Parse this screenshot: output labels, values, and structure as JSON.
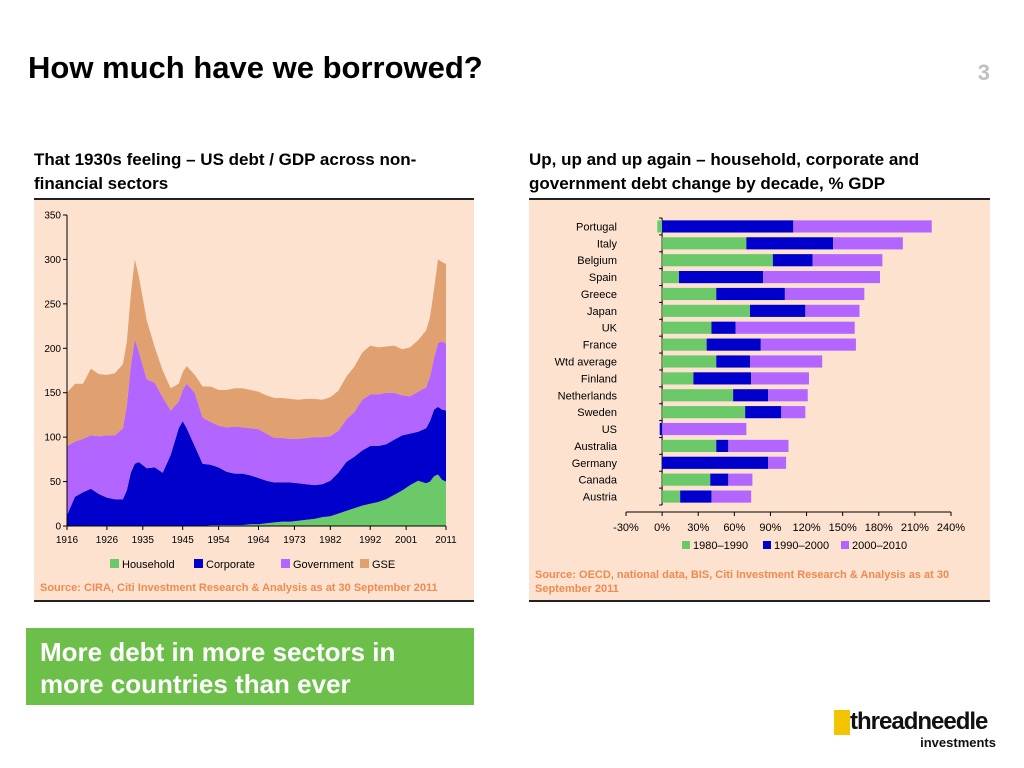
{
  "slide": {
    "title": "How much have we borrowed?",
    "page_number": "3",
    "callout": "More debt in more sectors in more countries than ever",
    "logo": {
      "name": "threadneedle",
      "tagline": "investments"
    }
  },
  "chart_data": [
    {
      "type": "area",
      "title": "That 1930s feeling – US debt / GDP across non-financial sectors",
      "xlabel": "",
      "ylabel": "",
      "stacked": true,
      "x": [
        1916,
        1918,
        1920,
        1922,
        1924,
        1926,
        1928,
        1930,
        1931,
        1932,
        1933,
        1934,
        1936,
        1938,
        1940,
        1942,
        1944,
        1945,
        1946,
        1948,
        1950,
        1952,
        1954,
        1956,
        1958,
        1960,
        1962,
        1964,
        1966,
        1968,
        1970,
        1972,
        1974,
        1976,
        1978,
        1980,
        1982,
        1984,
        1986,
        1988,
        1990,
        1992,
        1994,
        1996,
        1998,
        2000,
        2002,
        2004,
        2006,
        2007,
        2008,
        2009,
        2010,
        2011
      ],
      "xticks": [
        1916,
        1926,
        1935,
        1945,
        1954,
        1964,
        1973,
        1982,
        1992,
        2001,
        2011
      ],
      "xtick_labels": [
        "1916",
        "1926",
        "1935",
        "1945",
        "1954",
        "1964",
        "1973",
        "1982",
        "1992",
        "2001",
        "2011"
      ],
      "ylim": [
        0,
        350
      ],
      "yticks": [
        0,
        50,
        100,
        150,
        200,
        250,
        300,
        350
      ],
      "grid": false,
      "legend_position": "bottom",
      "series": [
        {
          "name": "Household",
          "color": "#6cc96a",
          "values": [
            0,
            0,
            0,
            0,
            0,
            0,
            0,
            0,
            0,
            0,
            0,
            0,
            0,
            0,
            0,
            0,
            0,
            0,
            0,
            0,
            0,
            1,
            1,
            1,
            1,
            1,
            2,
            2,
            3,
            4,
            5,
            5,
            6,
            7,
            8,
            10,
            11,
            14,
            17,
            20,
            23,
            25,
            27,
            30,
            35,
            40,
            46,
            51,
            48,
            50,
            56,
            58,
            52,
            50
          ]
        },
        {
          "name": "Corporate",
          "color": "#0000cc",
          "values": [
            12,
            33,
            38,
            42,
            36,
            32,
            30,
            30,
            40,
            60,
            70,
            72,
            65,
            66,
            60,
            80,
            110,
            118,
            110,
            90,
            70,
            68,
            65,
            60,
            58,
            58,
            55,
            52,
            48,
            45,
            44,
            44,
            42,
            40,
            38,
            37,
            40,
            46,
            55,
            58,
            62,
            65,
            63,
            62,
            62,
            62,
            58,
            55,
            62,
            68,
            75,
            76,
            79,
            80
          ]
        },
        {
          "name": "Government",
          "color": "#b366ff",
          "values": [
            78,
            62,
            60,
            60,
            65,
            70,
            72,
            80,
            95,
            120,
            140,
            124,
            100,
            95,
            85,
            50,
            30,
            35,
            50,
            60,
            52,
            48,
            47,
            50,
            53,
            52,
            53,
            55,
            53,
            50,
            50,
            49,
            50,
            52,
            54,
            53,
            50,
            47,
            48,
            50,
            57,
            58,
            58,
            58,
            53,
            45,
            42,
            45,
            46,
            50,
            58,
            72,
            77,
            75
          ]
        },
        {
          "name": "GSE",
          "color": "#e0a070",
          "values": [
            60,
            65,
            62,
            75,
            70,
            68,
            70,
            72,
            72,
            80,
            90,
            85,
            66,
            40,
            30,
            25,
            20,
            20,
            20,
            20,
            35,
            40,
            40,
            42,
            43,
            44,
            43,
            42,
            43,
            45,
            45,
            45,
            44,
            44,
            43,
            42,
            44,
            45,
            48,
            51,
            53,
            55,
            53,
            52,
            53,
            52,
            55,
            58,
            64,
            67,
            77,
            94,
            89,
            90
          ]
        }
      ],
      "source": "Source: CIRA, Citi Investment Research & Analysis as at 30 September 2011"
    },
    {
      "type": "bar",
      "orientation": "horizontal",
      "stacked": true,
      "title": "Up, up and up again – household, corporate and government debt change by decade, % GDP",
      "xlabel": "",
      "ylabel": "",
      "categories": [
        "Portugal",
        "Italy",
        "Belgium",
        "Spain",
        "Greece",
        "Japan",
        "UK",
        "France",
        "Wtd average",
        "Finland",
        "Netherlands",
        "Sweden",
        "US",
        "Australia",
        "Germany",
        "Canada",
        "Austria"
      ],
      "xlim": [
        -30,
        240
      ],
      "xticks": [
        -30,
        0,
        30,
        60,
        90,
        120,
        150,
        180,
        210,
        240
      ],
      "xtick_labels": [
        "-30%",
        "0%",
        "30%",
        "60%",
        "90%",
        "120%",
        "150%",
        "180%",
        "210%",
        "240%"
      ],
      "grid": false,
      "legend_position": "bottom",
      "series": [
        {
          "name": "1980–1990",
          "color": "#6cc96a",
          "values": [
            -4,
            70,
            92,
            14,
            45,
            73,
            41,
            37,
            45,
            26,
            59,
            69,
            0,
            45,
            0,
            40,
            15
          ]
        },
        {
          "name": "1990–2000",
          "color": "#0000cc",
          "values": [
            109,
            72,
            33,
            70,
            57,
            46,
            20,
            45,
            28,
            48,
            29,
            30,
            -2,
            10,
            88,
            15,
            26
          ]
        },
        {
          "name": "2000–2010",
          "color": "#b366ff",
          "values": [
            115,
            58,
            58,
            97,
            66,
            45,
            99,
            79,
            60,
            48,
            33,
            20,
            70,
            50,
            15,
            20,
            33
          ]
        }
      ],
      "source": "Source: OECD, national data, BIS, Citi Investment Research & Analysis as at 30 September 2011"
    }
  ]
}
